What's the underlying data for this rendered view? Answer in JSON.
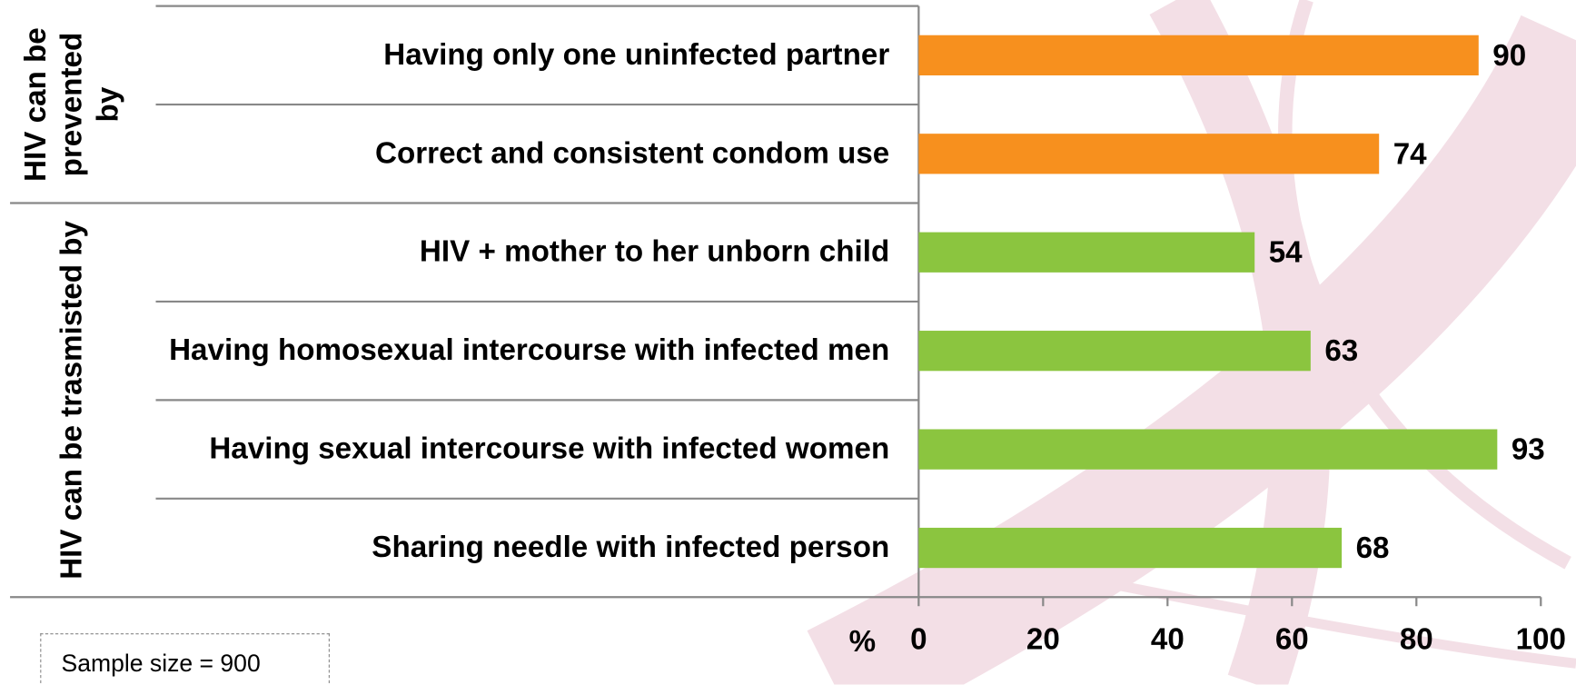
{
  "chart_data": {
    "type": "bar",
    "orientation": "horizontal",
    "groups": [
      "HIV can be prevented by",
      "HIV can be trasmisted by"
    ],
    "categories": [
      "Having only one uninfected partner",
      "Correct and consistent condom use",
      "HIV + mother to her unborn child",
      "Having homosexual intercourse with infected men",
      "Having sexual intercourse with infected women",
      "Sharing needle with infected person"
    ],
    "values": [
      90,
      74,
      54,
      63,
      93,
      68
    ],
    "colors": [
      "#f7901e",
      "#f7901e",
      "#8bc53f",
      "#8bc53f",
      "#8bc53f",
      "#8bc53f"
    ],
    "xlabel": "%",
    "xlim": [
      0,
      100
    ],
    "xticks": [
      0,
      20,
      40,
      60,
      80,
      100
    ],
    "note": "Sample size = 900"
  }
}
